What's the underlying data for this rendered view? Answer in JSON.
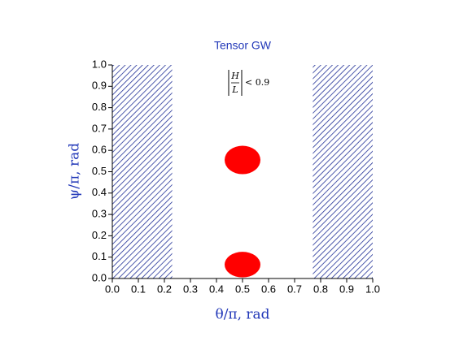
{
  "chart_data": {
    "type": "region",
    "title": "Tensor GW",
    "xlabel": "θ/π, rad",
    "ylabel": "ψ/π, rad",
    "annotation": {
      "numerator": "H",
      "denominator": "L",
      "text": "< 0.9"
    },
    "xlim": [
      0,
      1
    ],
    "ylim": [
      0,
      1
    ],
    "xticks": [
      {
        "value": 0,
        "label": "0.0"
      },
      0.1,
      0.2,
      0.3,
      0.4,
      0.5,
      0.6,
      0.7,
      0.8,
      0.9,
      {
        "value": 1,
        "label": "1.0"
      }
    ],
    "yticks": [
      {
        "value": 0,
        "label": "0.0"
      },
      0.1,
      0.2,
      0.3,
      0.4,
      0.5,
      0.6,
      0.7,
      0.8,
      0.9,
      {
        "value": 1,
        "label": "1.0"
      }
    ],
    "hatch_color": "#1f2f96",
    "regions": [
      {
        "x": [
          0,
          0.23
        ]
      },
      {
        "x": [
          0.77,
          1
        ]
      }
    ],
    "ellipse_color": "#ff0000",
    "ellipses": [
      {
        "x": 0.5,
        "y": 0.555,
        "width": 0.1375,
        "height": 0.133
      },
      {
        "x": 0.5,
        "y": 0.065,
        "width": 0.1375,
        "height": 0.12
      }
    ]
  }
}
